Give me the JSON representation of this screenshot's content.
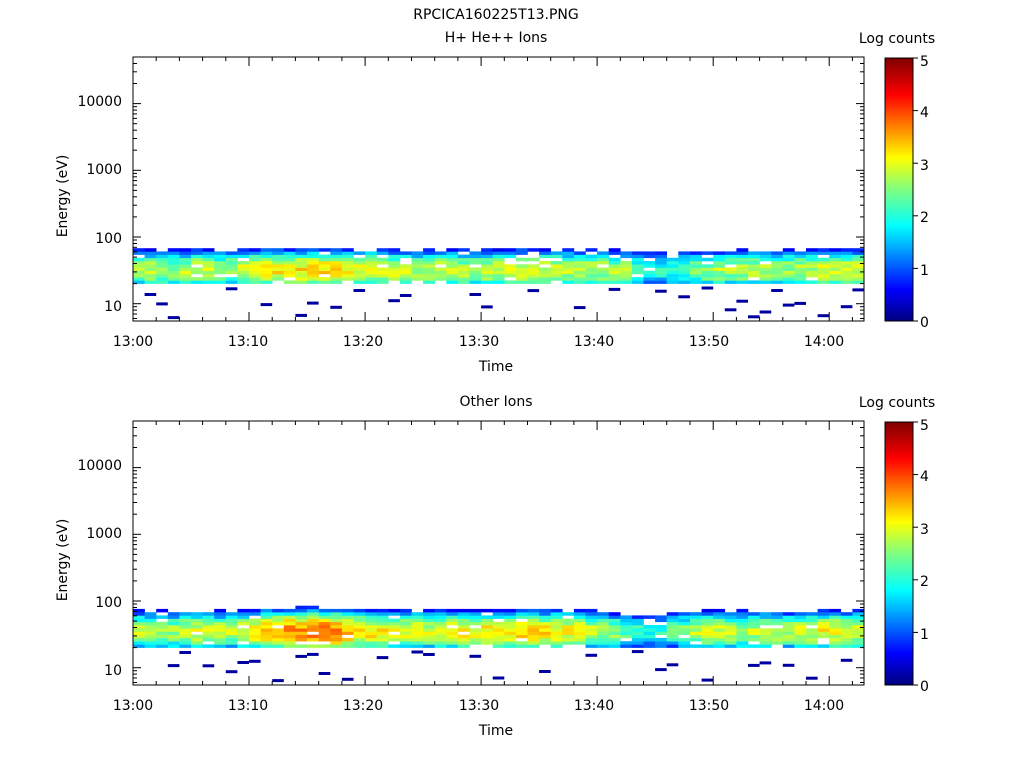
{
  "figure_title": "RPCICA160225T13.PNG",
  "chart_data": [
    {
      "type": "heatmap",
      "title": "H+ He++ Ions",
      "xlabel": "Time",
      "ylabel": "Energy (eV)",
      "x_ticks": [
        "13:00",
        "13:10",
        "13:20",
        "13:30",
        "13:40",
        "13:50",
        "14:00"
      ],
      "x_range": [
        "13:00",
        "14:03"
      ],
      "y_scale": "log",
      "y_ticks": [
        "10",
        "100",
        "1000",
        "10000"
      ],
      "y_range": [
        5.5,
        50000
      ],
      "colorbar": {
        "label": "Log counts",
        "range": [
          0,
          5
        ],
        "ticks": [
          "0",
          "1",
          "2",
          "3",
          "4",
          "5"
        ],
        "colormap": "jet"
      },
      "time_bins_minutes": [
        0,
        63
      ],
      "band_peak_energy_eV": 32,
      "band_energy_eV": [
        20,
        95
      ],
      "profile_log_counts": [
        2.7,
        2.8,
        2.7,
        2.6,
        2.8,
        2.9,
        2.8,
        2.7,
        2.7,
        2.9,
        3.0,
        3.1,
        3.2,
        3.2,
        3.2,
        3.3,
        3.3,
        3.2,
        3.1,
        3.0,
        3.0,
        2.9,
        2.9,
        2.8,
        2.8,
        2.8,
        2.9,
        2.9,
        2.8,
        2.8,
        2.9,
        2.9,
        2.9,
        3.0,
        3.0,
        2.9,
        2.9,
        2.8,
        2.8,
        2.8,
        2.8,
        2.7,
        2.6,
        2.3,
        2.1,
        2.0,
        2.1,
        2.3,
        2.5,
        2.6,
        2.7,
        2.7,
        2.7,
        2.7,
        2.8,
        2.7,
        2.7,
        2.8,
        2.8,
        2.9,
        2.9,
        2.9,
        2.9
      ]
    },
    {
      "type": "heatmap",
      "title": "Other Ions",
      "xlabel": "Time",
      "ylabel": "Energy (eV)",
      "x_ticks": [
        "13:00",
        "13:10",
        "13:20",
        "13:30",
        "13:40",
        "13:50",
        "14:00"
      ],
      "x_range": [
        "13:00",
        "14:03"
      ],
      "y_scale": "log",
      "y_ticks": [
        "10",
        "100",
        "1000",
        "10000"
      ],
      "y_range": [
        5.5,
        50000
      ],
      "colorbar": {
        "label": "Log counts",
        "range": [
          0,
          5
        ],
        "ticks": [
          "0",
          "1",
          "2",
          "3",
          "4",
          "5"
        ],
        "colormap": "jet"
      },
      "time_bins_minutes": [
        0,
        63
      ],
      "band_peak_energy_eV": 35,
      "band_energy_eV": [
        20,
        95
      ],
      "profile_log_counts": [
        2.8,
        2.8,
        2.7,
        2.7,
        2.9,
        3.0,
        2.9,
        2.8,
        2.8,
        3.0,
        3.2,
        3.4,
        3.6,
        3.7,
        3.7,
        3.8,
        3.8,
        3.7,
        3.5,
        3.3,
        3.2,
        3.1,
        3.0,
        3.0,
        3.0,
        2.9,
        3.0,
        3.1,
        3.1,
        3.1,
        3.2,
        3.2,
        3.3,
        3.3,
        3.3,
        3.2,
        3.2,
        3.1,
        3.0,
        2.9,
        2.8,
        2.6,
        2.4,
        2.2,
        2.1,
        2.1,
        2.3,
        2.6,
        2.8,
        2.9,
        2.9,
        2.8,
        2.8,
        2.8,
        2.9,
        2.9,
        2.8,
        2.9,
        3.0,
        3.1,
        3.1,
        3.0,
        3.0
      ]
    }
  ]
}
